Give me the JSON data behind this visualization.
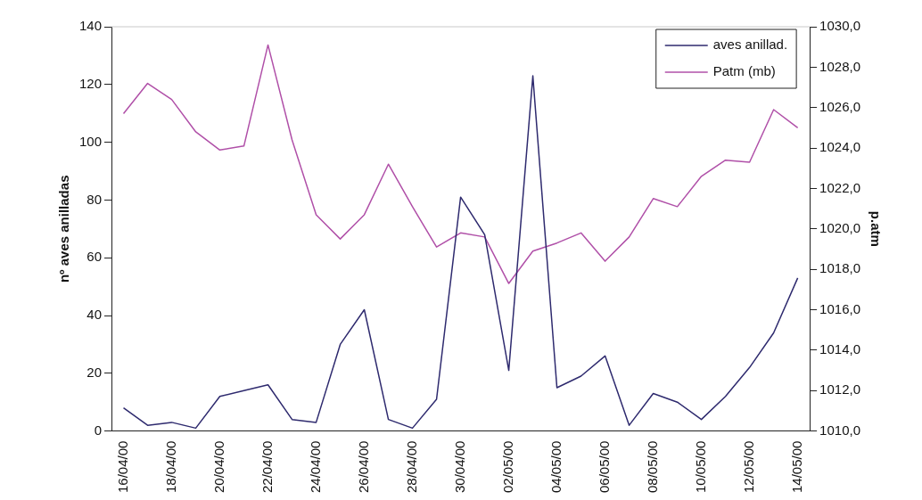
{
  "chart_data": {
    "type": "line",
    "categories": [
      "16/04/00",
      null,
      "18/04/00",
      null,
      "20/04/00",
      null,
      "22/04/00",
      null,
      "24/04/00",
      null,
      "26/04/00",
      null,
      "28/04/00",
      null,
      "30/04/00",
      null,
      "02/05/00",
      null,
      "04/05/00",
      null,
      "06/05/00",
      null,
      "08/05/00",
      null,
      "10/05/00",
      null,
      "12/05/00",
      null,
      "14/05/00"
    ],
    "series": [
      {
        "name": "aves anillad.",
        "color": "#2e2a6e",
        "values": [
          8,
          2,
          3,
          1,
          12,
          14,
          16,
          4,
          3,
          30,
          42,
          4,
          1,
          11,
          81,
          68,
          21,
          123,
          15,
          19,
          26,
          2,
          13,
          10,
          4,
          12,
          22,
          34,
          53
        ]
      },
      {
        "name": "Patm (mb)",
        "color": "#b050a8",
        "axis": "y2",
        "values": [
          1025.7,
          1027.2,
          1026.4,
          1024.8,
          1023.9,
          1024.1,
          1029.1,
          1024.4,
          1020.7,
          1019.5,
          1020.7,
          1023.2,
          1021.1,
          1019.1,
          1019.8,
          1019.6,
          1017.3,
          1018.9,
          1019.3,
          1019.8,
          1018.4,
          1019.6,
          1021.5,
          1021.1,
          1022.6,
          1023.4,
          1023.3,
          1025.9,
          1025.0
        ]
      }
    ],
    "ylabel": "nº aves anilladas",
    "y2label": "p.atm",
    "ylim": [
      0,
      140
    ],
    "yticks": [
      0,
      20,
      40,
      60,
      80,
      100,
      120,
      140
    ],
    "y2lim": [
      1010,
      1030
    ],
    "y2ticks": [
      {
        "value": 1010,
        "label": "1010,0"
      },
      {
        "value": 1012,
        "label": "1012,0"
      },
      {
        "value": 1014,
        "label": "1014,0"
      },
      {
        "value": 1016,
        "label": "1016,0"
      },
      {
        "value": 1018,
        "label": "1018,0"
      },
      {
        "value": 1020,
        "label": "1020,0"
      },
      {
        "value": 1022,
        "label": "1022,0"
      },
      {
        "value": 1024,
        "label": "1024,0"
      },
      {
        "value": 1026,
        "label": "1026,0"
      },
      {
        "value": 1028,
        "label": "1028,0"
      },
      {
        "value": 1030,
        "label": "1030,0"
      }
    ],
    "grid": false,
    "legend": "top right",
    "marker": "none",
    "line_style": "solid"
  }
}
